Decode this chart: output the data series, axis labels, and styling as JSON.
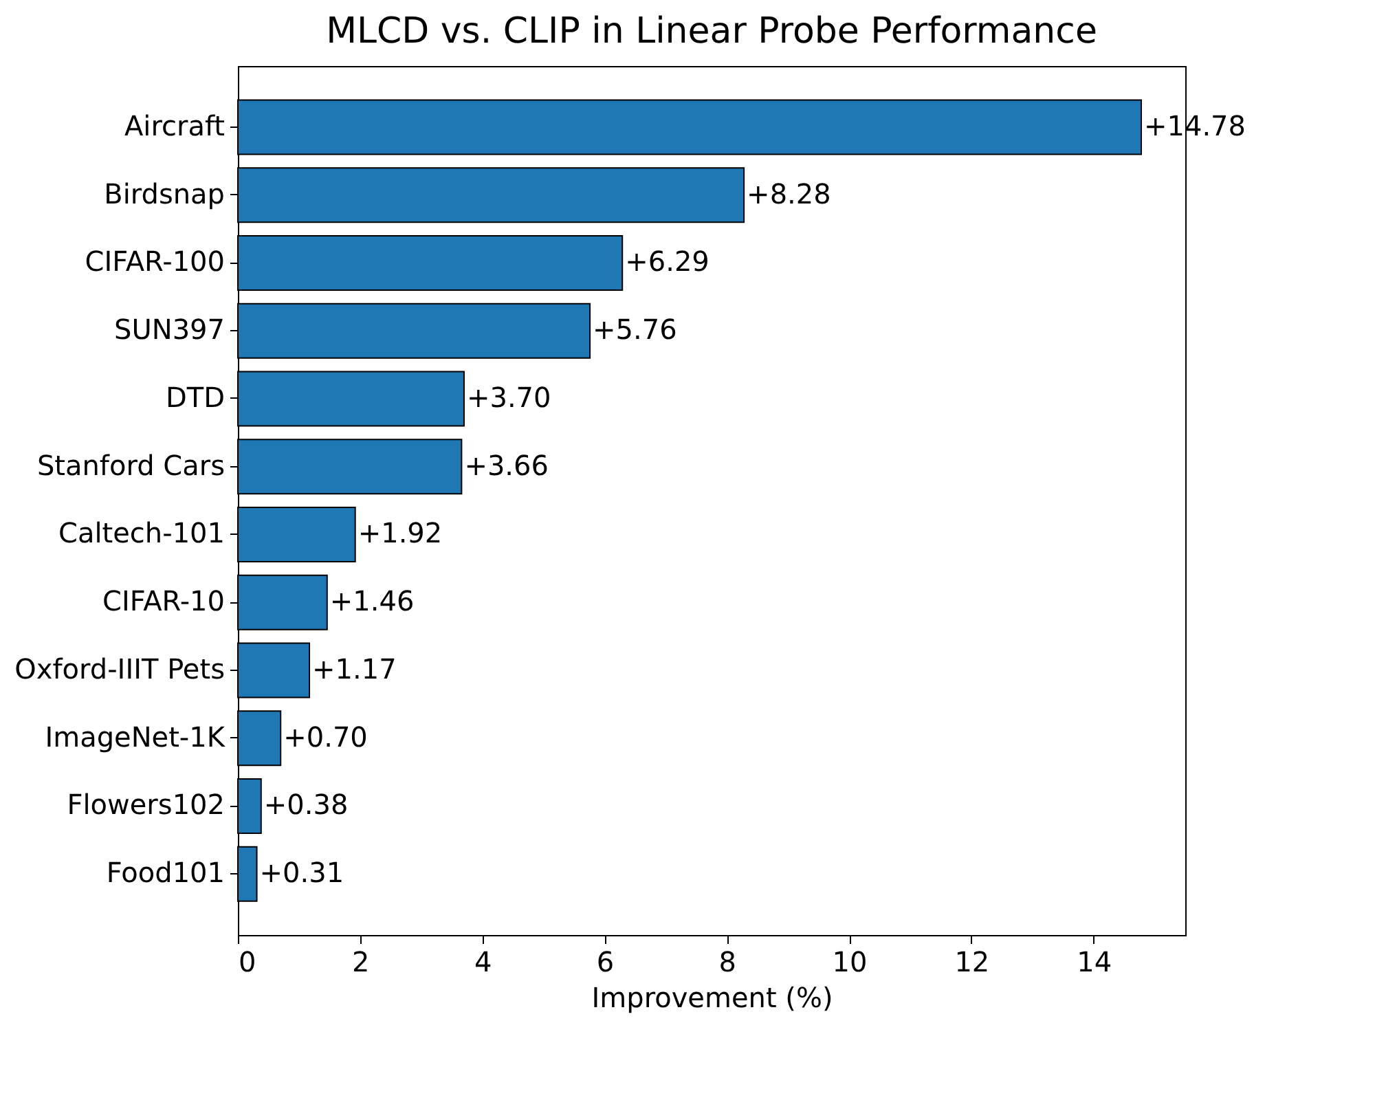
{
  "chart_data": {
    "type": "bar",
    "orientation": "horizontal",
    "title": "MLCD vs. CLIP in Linear Probe Performance",
    "xlabel": "Improvement (%)",
    "categories": [
      "Aircraft",
      "Birdsnap",
      "CIFAR-100",
      "SUN397",
      "DTD",
      "Stanford Cars",
      "Caltech-101",
      "CIFAR-10",
      "Oxford-IIIT Pets",
      "ImageNet-1K",
      "Flowers102",
      "Food101"
    ],
    "values": [
      14.78,
      8.28,
      6.29,
      5.76,
      3.7,
      3.66,
      1.92,
      1.46,
      1.17,
      0.7,
      0.38,
      0.31
    ],
    "value_labels": [
      "+14.78",
      "+8.28",
      "+6.29",
      "+5.76",
      "+3.70",
      "+3.66",
      "+1.92",
      "+1.46",
      "+1.17",
      "+0.70",
      "+0.38",
      "+0.31"
    ],
    "color": "#1f77b4",
    "xlim": [
      0,
      15.5
    ],
    "xticks": [
      0,
      2,
      4,
      6,
      8,
      10,
      12,
      14
    ],
    "grid": false
  }
}
